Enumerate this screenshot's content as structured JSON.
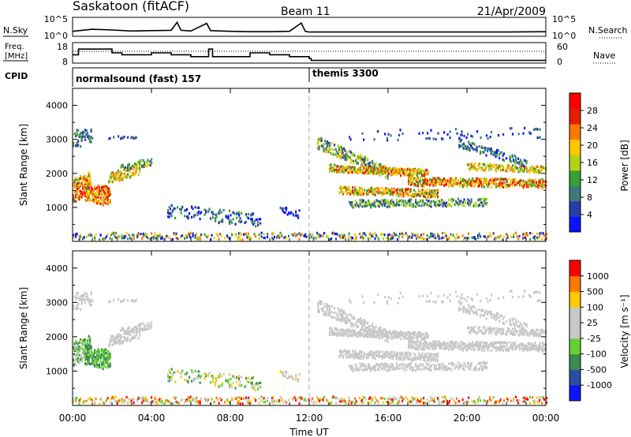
{
  "header": {
    "title": "Saskatoon (fitACF)",
    "beam": "Beam 11",
    "date": "21/Apr/2009"
  },
  "noise_panel": {
    "left_label": "N.Sky",
    "right_label": "N.Search",
    "left_ticks": [
      "10^5",
      "10^0"
    ],
    "right_ticks": [
      "10^5",
      "10^0"
    ]
  },
  "freq_panel": {
    "left_label_1": "Freq.",
    "left_label_2": "[MHz]",
    "right_label": "Nave",
    "left_ticks": [
      "18",
      "8"
    ],
    "right_ticks": [
      "60",
      "0"
    ]
  },
  "cpid": {
    "label": "CPID",
    "segments": [
      {
        "name": "normalsound (fast) 157",
        "start_hour": 0
      },
      {
        "name": "themis 3300",
        "start_hour": 12
      }
    ]
  },
  "xaxis": {
    "label": "Time UT",
    "ticks": [
      "00:00",
      "04:00",
      "08:00",
      "12:00",
      "16:00",
      "20:00",
      "00:00"
    ]
  },
  "power_panel": {
    "ylabel": "Slant Range [km]",
    "yticks": [
      "4000",
      "3000",
      "2000",
      "1000"
    ],
    "colorbar_label": "Power [dB]",
    "colorbar_ticks": [
      "28",
      "24",
      "20",
      "16",
      "12",
      "8",
      "4"
    ],
    "colors": [
      "#0a14ff",
      "#2a3caa",
      "#3e7a7a",
      "#3aa032",
      "#b4d214",
      "#ffc800",
      "#ff7800",
      "#e61e00",
      "#ff0000"
    ]
  },
  "velocity_panel": {
    "ylabel": "Slant Range [km]",
    "yticks": [
      "4000",
      "3000",
      "2000",
      "1000"
    ],
    "colorbar_label": "Velocity [m s⁻¹]",
    "colorbar_ticks": [
      "1000",
      "500",
      "100",
      "25",
      "-25",
      "-100",
      "-500",
      "-1000"
    ],
    "colors": [
      "#0a14ff",
      "#2a4fa0",
      "#3c8c50",
      "#64d232",
      "#c8c8c8",
      "#c8c8c8",
      "#ffc800",
      "#ff7800",
      "#ff0000"
    ]
  },
  "chart_data": [
    {
      "type": "line",
      "name": "noise",
      "x": [
        0,
        1,
        2,
        3,
        4,
        5,
        5.3,
        5.5,
        6,
        6.8,
        7,
        8,
        9,
        10,
        11,
        11.6,
        11.8,
        12,
        14,
        16,
        18,
        20,
        22,
        24
      ],
      "ylim": [
        0,
        5
      ],
      "series": [
        {
          "name": "N.Sky",
          "values": [
            1.2,
            1.8,
            1.6,
            1.3,
            1.4,
            1.5,
            3.8,
            1.5,
            1.3,
            3.5,
            1.4,
            1.2,
            1.1,
            1.1,
            1.2,
            3.6,
            1.2,
            1.0,
            1.0,
            1.0,
            1.0,
            1.0,
            1.0,
            1.1
          ]
        }
      ]
    },
    {
      "type": "line",
      "name": "freq",
      "x": [
        0,
        0.3,
        0.5,
        2,
        2.5,
        4,
        5,
        6,
        6,
        6.9,
        7.1,
        7.3,
        8,
        9,
        10,
        11,
        12,
        12.1,
        24
      ],
      "ylim": [
        8,
        18
      ],
      "series": [
        {
          "name": "Freq.",
          "values": [
            12,
            15,
            15,
            13,
            12,
            13,
            12,
            11,
            11,
            15,
            11,
            11,
            11,
            13,
            12,
            11,
            10,
            9,
            9
          ]
        },
        {
          "name": "Nave",
          "values": [
            35,
            35,
            35,
            35,
            35,
            35,
            35,
            35,
            35,
            35,
            35,
            35,
            35,
            35,
            35,
            35,
            35,
            35,
            35
          ]
        }
      ]
    },
    {
      "type": "heatmap",
      "name": "power",
      "ylim": [
        0,
        4500
      ],
      "xlim": [
        0,
        24
      ]
    },
    {
      "type": "heatmap",
      "name": "velocity",
      "ylim": [
        0,
        4500
      ],
      "xlim": [
        0,
        24
      ]
    }
  ]
}
